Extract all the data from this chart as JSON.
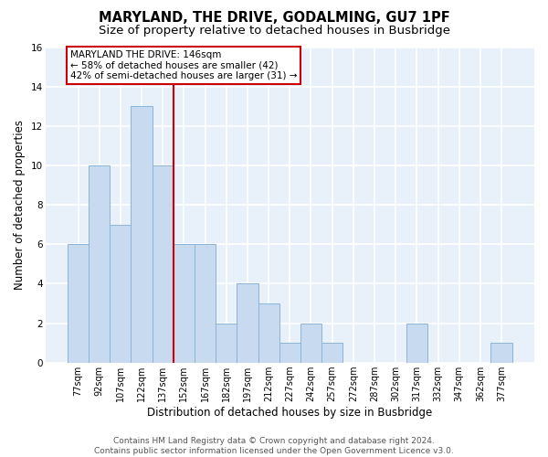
{
  "title": "MARYLAND, THE DRIVE, GODALMING, GU7 1PF",
  "subtitle": "Size of property relative to detached houses in Busbridge",
  "xlabel": "Distribution of detached houses by size in Busbridge",
  "ylabel": "Number of detached properties",
  "categories": [
    "77sqm",
    "92sqm",
    "107sqm",
    "122sqm",
    "137sqm",
    "152sqm",
    "167sqm",
    "182sqm",
    "197sqm",
    "212sqm",
    "227sqm",
    "242sqm",
    "257sqm",
    "272sqm",
    "287sqm",
    "302sqm",
    "317sqm",
    "332sqm",
    "347sqm",
    "362sqm",
    "377sqm"
  ],
  "values": [
    6,
    10,
    7,
    13,
    10,
    6,
    6,
    2,
    4,
    3,
    1,
    2,
    1,
    0,
    0,
    0,
    2,
    0,
    0,
    0,
    1
  ],
  "bar_color": "#c8daf0",
  "bar_edgecolor": "#8ab4d8",
  "background_color": "#e8f0fa",
  "grid_color": "#ffffff",
  "vline_x": 4.5,
  "vline_color": "#cc0000",
  "ylim": [
    0,
    16
  ],
  "yticks": [
    0,
    2,
    4,
    6,
    8,
    10,
    12,
    14,
    16
  ],
  "annotation_line1": "MARYLAND THE DRIVE: 146sqm",
  "annotation_line2": "← 58% of detached houses are smaller (42)",
  "annotation_line3": "42% of semi-detached houses are larger (31) →",
  "footer_text": "Contains HM Land Registry data © Crown copyright and database right 2024.\nContains public sector information licensed under the Open Government Licence v3.0.",
  "title_fontsize": 10.5,
  "subtitle_fontsize": 9.5,
  "tick_fontsize": 7,
  "ylabel_fontsize": 8.5,
  "xlabel_fontsize": 8.5,
  "annotation_fontsize": 7.5,
  "footer_fontsize": 6.5
}
